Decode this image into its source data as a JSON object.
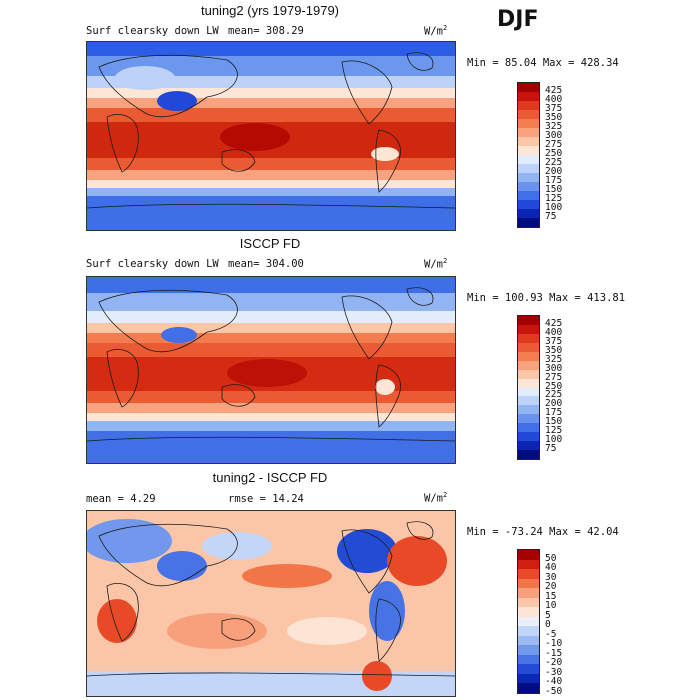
{
  "season": "DJF",
  "colors": {
    "abs_scale": [
      "#a30000",
      "#c8150b",
      "#df3a1d",
      "#ea5a33",
      "#f47d4f",
      "#f9a27e",
      "#fcc6a7",
      "#fde6d6",
      "#e2ecfb",
      "#bcd2f8",
      "#93b4f3",
      "#6993ee",
      "#406fe6",
      "#1f49d6",
      "#0a26b0",
      "#000c80"
    ],
    "diff_scale": [
      "#a30000",
      "#cf1f0e",
      "#e84a28",
      "#f27547",
      "#f8a07c",
      "#fbc6a8",
      "#fde4d4",
      "#eaf0fb",
      "#c3d6f7",
      "#9bbaf2",
      "#7198ec",
      "#4773e4",
      "#234cd5",
      "#0b28b0",
      "#000c80"
    ],
    "land_outline": "#1a1a1a"
  },
  "panels": [
    {
      "title": "tuning2 (yrs 1979-1979)",
      "field_label": "Surf clearsky down LW",
      "mean_text": "mean= 308.29",
      "units": "W/m",
      "units_exp": "2",
      "min_max_text": "Min =  85.04 Max = 428.34",
      "colorbar_labels": [
        "425",
        "400",
        "375",
        "350",
        "325",
        "300",
        "275",
        "250",
        "225",
        "200",
        "175",
        "150",
        "125",
        "100",
        "75"
      ]
    },
    {
      "title": "ISCCP FD",
      "field_label": "Surf clearsky down LW",
      "mean_text": "mean= 304.00",
      "units": "W/m",
      "units_exp": "2",
      "min_max_text": "Min = 100.93 Max = 413.81",
      "colorbar_labels": [
        "425",
        "400",
        "375",
        "350",
        "325",
        "300",
        "275",
        "250",
        "225",
        "200",
        "175",
        "150",
        "125",
        "100",
        "75"
      ]
    },
    {
      "title": "tuning2 - ISCCP FD",
      "mean_text": "mean =    4.29",
      "rmse_text": "rmse =  14.24",
      "units": "W/m",
      "units_exp": "2",
      "min_max_text": "Min = -73.24 Max =  42.04",
      "colorbar_labels": [
        "50",
        "40",
        "30",
        "20",
        "15",
        "10",
        "5",
        "0",
        "-5",
        "-10",
        "-15",
        "-20",
        "-30",
        "-40",
        "-50"
      ]
    }
  ]
}
